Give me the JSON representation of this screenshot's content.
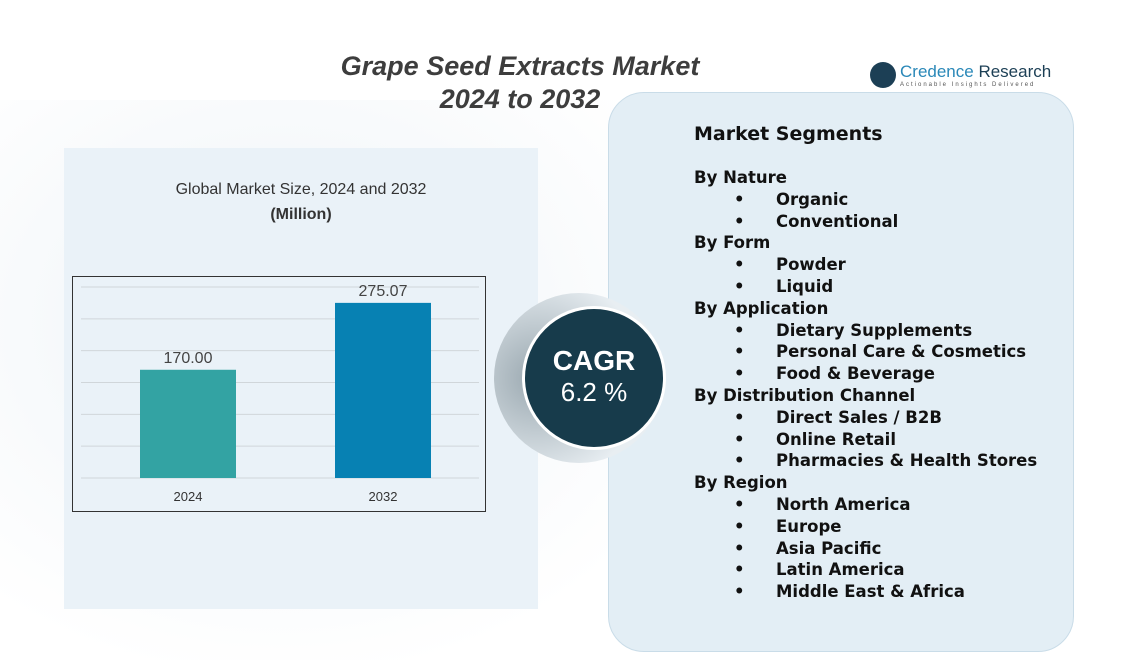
{
  "header": {
    "title_line1": "Grape Seed Extracts Market",
    "title_line2": "2024 to 2032"
  },
  "logo": {
    "name_part1": "Credence",
    "name_part2": " Research",
    "tagline": "Actionable Insights Delivered"
  },
  "chart_data": {
    "type": "bar",
    "title": "Global Market Size, 2024 and 2032",
    "unit": "(Million)",
    "categories": [
      "2024",
      "2032"
    ],
    "values": [
      170.0,
      275.07
    ],
    "value_labels": [
      "170.00",
      "275.07"
    ],
    "colors": [
      "#33a3a3",
      "#0781b3"
    ],
    "ylim": [
      0,
      300
    ],
    "grid_step": 50,
    "grid": true
  },
  "cagr": {
    "label": "CAGR",
    "value": "6.2 %"
  },
  "segments": {
    "heading": "Market Segments",
    "groups": [
      {
        "name": "By Nature",
        "items": [
          "Organic",
          "Conventional"
        ]
      },
      {
        "name": "By Form",
        "items": [
          "Powder",
          "Liquid"
        ]
      },
      {
        "name": "By Application",
        "items": [
          "Dietary Supplements",
          "Personal Care & Cosmetics",
          "Food & Beverage"
        ]
      },
      {
        "name": "By Distribution Channel",
        "items": [
          "Direct Sales / B2B",
          "Online Retail",
          "Pharmacies & Health Stores"
        ]
      },
      {
        "name": "By Region",
        "items": [
          "North America",
          "Europe",
          "Asia Pacific",
          "Latin America",
          "Middle East & Africa"
        ]
      }
    ]
  }
}
